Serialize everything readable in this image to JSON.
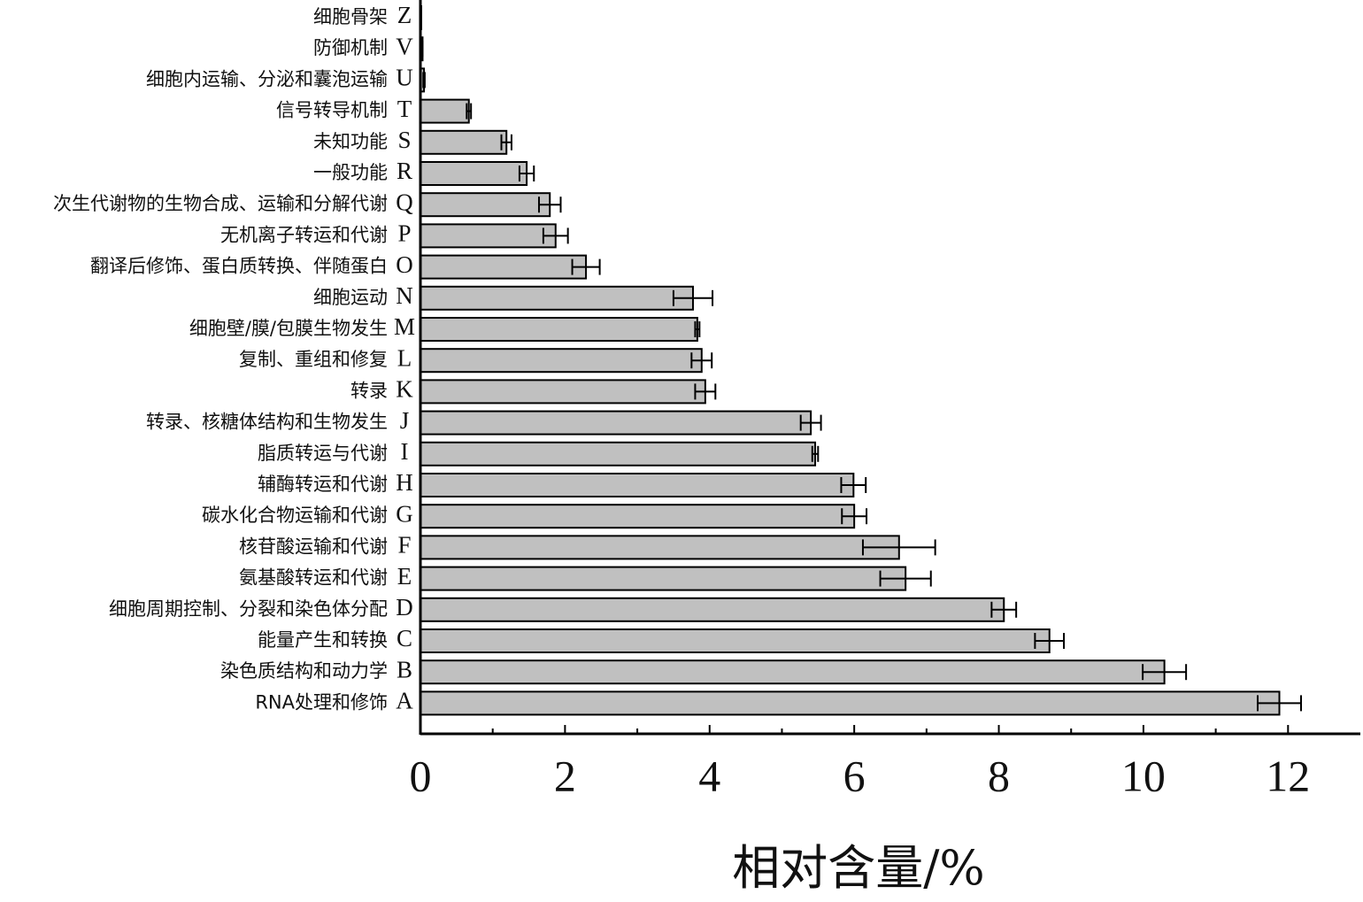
{
  "chart_data": {
    "type": "hbar_error",
    "x_label": "相对含量/%",
    "categories": [
      "细胞骨架",
      "防御机制",
      "细胞内运输、分泌和囊泡运输",
      "信号转导机制",
      "未知功能",
      "一般功能",
      "次生代谢物的生物合成、运输和分解代谢",
      "无机离子转运和代谢",
      "翻译后修饰、蛋白质转换、伴随蛋白",
      "细胞运动",
      "细胞壁/膜/包膜生物发生",
      "复制、重组和修复",
      "转录",
      "转录、核糖体结构和生物发生",
      "脂质转运与代谢",
      "辅酶转运和代谢",
      "碳水化合物运输和代谢",
      "核苷酸运输和代谢",
      "氨基酸转运和代谢",
      "细胞周期控制、分裂和染色体分配",
      "能量产生和转换",
      "染色质结构和动力学",
      "RNA处理和修饰"
    ],
    "category_codes": [
      "Z",
      "V",
      "U",
      "T",
      "S",
      "R",
      "Q",
      "P",
      "O",
      "N",
      "M",
      "L",
      "K",
      "J",
      "I",
      "H",
      "G",
      "F",
      "E",
      "D",
      "C",
      "B",
      "A"
    ],
    "values": [
      0.01,
      0.03,
      0.05,
      0.67,
      1.19,
      1.47,
      1.79,
      1.87,
      2.29,
      3.77,
      3.83,
      3.89,
      3.94,
      5.4,
      5.46,
      5.99,
      6.0,
      6.62,
      6.71,
      8.07,
      8.7,
      10.29,
      11.88
    ],
    "errors": [
      0,
      0,
      0.01,
      0.03,
      0.07,
      0.1,
      0.15,
      0.17,
      0.19,
      0.27,
      0.03,
      0.14,
      0.14,
      0.14,
      0.04,
      0.17,
      0.17,
      0.5,
      0.35,
      0.17,
      0.2,
      0.3,
      0.3
    ],
    "color": "#c0c0c0",
    "xlim": [
      0,
      13
    ],
    "xticks": [
      0,
      2,
      4,
      6,
      8,
      10,
      12
    ],
    "xminor_ticks": [
      1,
      3,
      5,
      7,
      9,
      11
    ]
  }
}
